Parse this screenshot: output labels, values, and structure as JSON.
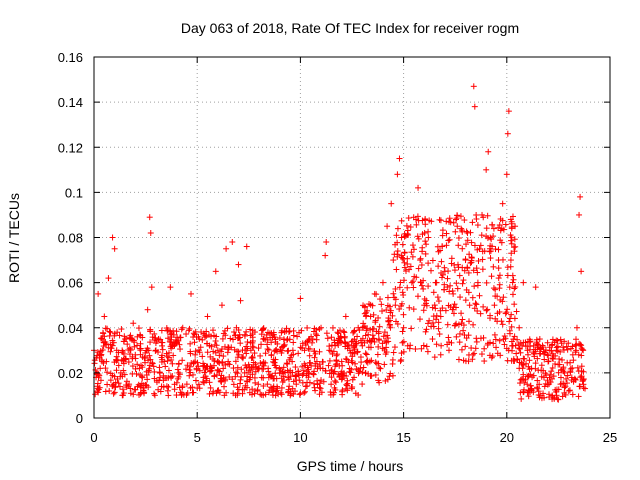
{
  "chart_data": {
    "type": "scatter",
    "title": "Day 063 of 2018, Rate Of TEC Index for receiver rogm",
    "xlabel": "GPS time / hours",
    "ylabel": "ROTI / TECUs",
    "xlim": [
      0,
      25
    ],
    "ylim": [
      0,
      0.16
    ],
    "xticks": [
      0,
      5,
      10,
      15,
      20,
      25
    ],
    "xtick_labels": [
      "0",
      "5",
      "10",
      "15",
      "20",
      "25"
    ],
    "yticks": [
      0,
      0.02,
      0.04,
      0.06,
      0.08,
      0.1,
      0.12,
      0.14,
      0.16
    ],
    "ytick_labels": [
      "0",
      "0.02",
      "0.04",
      "0.06",
      "0.08",
      "0.1",
      "0.12",
      "0.14",
      "0.16"
    ],
    "grid": true,
    "marker": "+",
    "series": [
      {
        "name": "ROTI",
        "color": "#ff0000",
        "points": [
          [
            0.0,
            0.03
          ],
          [
            0.1,
            0.018
          ],
          [
            0.2,
            0.055
          ],
          [
            0.3,
            0.022
          ],
          [
            0.4,
            0.035
          ],
          [
            0.5,
            0.045
          ],
          [
            0.6,
            0.025
          ],
          [
            0.7,
            0.062
          ],
          [
            0.8,
            0.038
          ],
          [
            0.9,
            0.08
          ],
          [
            1.0,
            0.075
          ],
          [
            1.1,
            0.03
          ],
          [
            1.3,
            0.02
          ],
          [
            1.5,
            0.035
          ],
          [
            1.7,
            0.015
          ],
          [
            1.9,
            0.042
          ],
          [
            2.0,
            0.028
          ],
          [
            2.2,
            0.022
          ],
          [
            2.4,
            0.012
          ],
          [
            2.6,
            0.048
          ],
          [
            2.7,
            0.089
          ],
          [
            2.75,
            0.082
          ],
          [
            2.8,
            0.058
          ],
          [
            3.0,
            0.03
          ],
          [
            3.2,
            0.018
          ],
          [
            3.4,
            0.025
          ],
          [
            3.6,
            0.01
          ],
          [
            3.7,
            0.058
          ],
          [
            3.9,
            0.032
          ],
          [
            4.1,
            0.02
          ],
          [
            4.3,
            0.04
          ],
          [
            4.5,
            0.015
          ],
          [
            4.7,
            0.055
          ],
          [
            4.9,
            0.028
          ],
          [
            5.1,
            0.035
          ],
          [
            5.3,
            0.018
          ],
          [
            5.5,
            0.045
          ],
          [
            5.7,
            0.022
          ],
          [
            5.9,
            0.065
          ],
          [
            6.0,
            0.03
          ],
          [
            6.2,
            0.05
          ],
          [
            6.4,
            0.075
          ],
          [
            6.5,
            0.025
          ],
          [
            6.7,
            0.078
          ],
          [
            6.9,
            0.04
          ],
          [
            7.0,
            0.068
          ],
          [
            7.1,
            0.052
          ],
          [
            7.3,
            0.02
          ],
          [
            7.4,
            0.076
          ],
          [
            7.6,
            0.03
          ],
          [
            7.8,
            0.012
          ],
          [
            8.0,
            0.022
          ],
          [
            8.2,
            0.035
          ],
          [
            8.4,
            0.015
          ],
          [
            8.6,
            0.028
          ],
          [
            8.8,
            0.01
          ],
          [
            9.0,
            0.02
          ],
          [
            9.2,
            0.032
          ],
          [
            9.4,
            0.018
          ],
          [
            9.6,
            0.025
          ],
          [
            9.8,
            0.015
          ],
          [
            10.0,
            0.053
          ],
          [
            10.2,
            0.03
          ],
          [
            10.4,
            0.02
          ],
          [
            10.6,
            0.035
          ],
          [
            10.8,
            0.025
          ],
          [
            11.0,
            0.04
          ],
          [
            11.2,
            0.072
          ],
          [
            11.25,
            0.078
          ],
          [
            11.4,
            0.03
          ],
          [
            11.6,
            0.02
          ],
          [
            11.8,
            0.038
          ],
          [
            12.0,
            0.025
          ],
          [
            12.2,
            0.045
          ],
          [
            12.4,
            0.03
          ],
          [
            12.6,
            0.018
          ],
          [
            12.8,
            0.04
          ],
          [
            13.0,
            0.032
          ],
          [
            13.2,
            0.025
          ],
          [
            13.4,
            0.045
          ],
          [
            13.6,
            0.055
          ],
          [
            13.8,
            0.035
          ],
          [
            14.0,
            0.06
          ],
          [
            14.2,
            0.085
          ],
          [
            14.4,
            0.095
          ],
          [
            14.5,
            0.07
          ],
          [
            14.6,
            0.05
          ],
          [
            14.7,
            0.108
          ],
          [
            14.8,
            0.115
          ],
          [
            14.9,
            0.08
          ],
          [
            15.0,
            0.04
          ],
          [
            15.2,
            0.032
          ],
          [
            15.4,
            0.06
          ],
          [
            15.6,
            0.088
          ],
          [
            15.7,
            0.102
          ],
          [
            15.8,
            0.07
          ],
          [
            16.0,
            0.05
          ],
          [
            16.2,
            0.08
          ],
          [
            16.4,
            0.035
          ],
          [
            16.6,
            0.06
          ],
          [
            16.8,
            0.045
          ],
          [
            17.0,
            0.065
          ],
          [
            17.2,
            0.03
          ],
          [
            17.4,
            0.055
          ],
          [
            17.6,
            0.085
          ],
          [
            17.8,
            0.042
          ],
          [
            18.0,
            0.07
          ],
          [
            18.2,
            0.05
          ],
          [
            18.4,
            0.147
          ],
          [
            18.45,
            0.138
          ],
          [
            18.6,
            0.06
          ],
          [
            18.8,
            0.09
          ],
          [
            19.0,
            0.11
          ],
          [
            19.1,
            0.118
          ],
          [
            19.2,
            0.08
          ],
          [
            19.4,
            0.05
          ],
          [
            19.6,
            0.07
          ],
          [
            19.8,
            0.095
          ],
          [
            20.0,
            0.108
          ],
          [
            20.05,
            0.126
          ],
          [
            20.1,
            0.136
          ],
          [
            20.2,
            0.07
          ],
          [
            20.4,
            0.085
          ],
          [
            20.6,
            0.04
          ],
          [
            20.8,
            0.06
          ],
          [
            21.0,
            0.03
          ],
          [
            21.2,
            0.022
          ],
          [
            21.4,
            0.058
          ],
          [
            21.6,
            0.035
          ],
          [
            21.8,
            0.018
          ],
          [
            22.0,
            0.025
          ],
          [
            22.2,
            0.01
          ],
          [
            22.4,
            0.03
          ],
          [
            22.6,
            0.015
          ],
          [
            22.8,
            0.02
          ],
          [
            23.0,
            0.012
          ],
          [
            23.2,
            0.028
          ],
          [
            23.4,
            0.04
          ],
          [
            23.5,
            0.09
          ],
          [
            23.55,
            0.098
          ],
          [
            23.6,
            0.065
          ],
          [
            23.7,
            0.03
          ]
        ],
        "bands": [
          {
            "x": [
              0.0,
              13.0
            ],
            "y": [
              0.01,
              0.04
            ]
          },
          {
            "x": [
              13.0,
              14.5
            ],
            "y": [
              0.015,
              0.055
            ]
          },
          {
            "x": [
              14.5,
              20.5
            ],
            "y": [
              0.025,
              0.09
            ]
          },
          {
            "x": [
              20.5,
              23.8
            ],
            "y": [
              0.008,
              0.035
            ]
          }
        ]
      }
    ]
  }
}
